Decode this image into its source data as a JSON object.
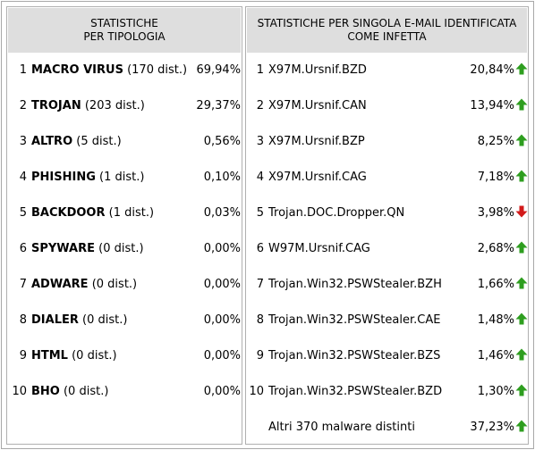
{
  "colors": {
    "up": "#2e9e1f",
    "down": "#d21a1a",
    "header_bg": "#dedede"
  },
  "left": {
    "header": [
      "STATISTICHE",
      "PER TIPOLOGIA"
    ],
    "rows": [
      {
        "num": "1",
        "name": "MACRO VIRUS",
        "dist": "(170 dist.)",
        "pct": "69,94%"
      },
      {
        "num": "2",
        "name": "TROJAN",
        "dist": "(203 dist.)",
        "pct": "29,37%"
      },
      {
        "num": "3",
        "name": "ALTRO",
        "dist": "(5 dist.)",
        "pct": "0,56%"
      },
      {
        "num": "4",
        "name": "PHISHING",
        "dist": "(1 dist.)",
        "pct": "0,10%"
      },
      {
        "num": "5",
        "name": "BACKDOOR",
        "dist": "(1 dist.)",
        "pct": "0,03%"
      },
      {
        "num": "6",
        "name": "SPYWARE",
        "dist": "(0 dist.)",
        "pct": "0,00%"
      },
      {
        "num": "7",
        "name": "ADWARE",
        "dist": "(0 dist.)",
        "pct": "0,00%"
      },
      {
        "num": "8",
        "name": "DIALER",
        "dist": "(0 dist.)",
        "pct": "0,00%"
      },
      {
        "num": "9",
        "name": "HTML",
        "dist": "(0 dist.)",
        "pct": "0,00%"
      },
      {
        "num": "10",
        "name": "BHO",
        "dist": "(0 dist.)",
        "pct": "0,00%"
      }
    ]
  },
  "right": {
    "header": [
      "STATISTICHE PER SINGOLA E-MAIL IDENTIFICATA",
      "COME INFETTA"
    ],
    "rows": [
      {
        "num": "1",
        "name": "X97M.Ursnif.BZD",
        "pct": "20,84%",
        "trend": "up"
      },
      {
        "num": "2",
        "name": "X97M.Ursnif.CAN",
        "pct": "13,94%",
        "trend": "up"
      },
      {
        "num": "3",
        "name": "X97M.Ursnif.BZP",
        "pct": "8,25%",
        "trend": "up"
      },
      {
        "num": "4",
        "name": "X97M.Ursnif.CAG",
        "pct": "7,18%",
        "trend": "up"
      },
      {
        "num": "5",
        "name": "Trojan.DOC.Dropper.QN",
        "pct": "3,98%",
        "trend": "down"
      },
      {
        "num": "6",
        "name": "W97M.Ursnif.CAG",
        "pct": "2,68%",
        "trend": "up"
      },
      {
        "num": "7",
        "name": "Trojan.Win32.PSWStealer.BZH",
        "pct": "1,66%",
        "trend": "up"
      },
      {
        "num": "8",
        "name": "Trojan.Win32.PSWStealer.CAE",
        "pct": "1,48%",
        "trend": "up"
      },
      {
        "num": "9",
        "name": "Trojan.Win32.PSWStealer.BZS",
        "pct": "1,46%",
        "trend": "up"
      },
      {
        "num": "10",
        "name": "Trojan.Win32.PSWStealer.BZD",
        "pct": "1,30%",
        "trend": "up"
      }
    ],
    "other": {
      "name": "Altri 370 malware distinti",
      "pct": "37,23%",
      "trend": "up"
    }
  }
}
